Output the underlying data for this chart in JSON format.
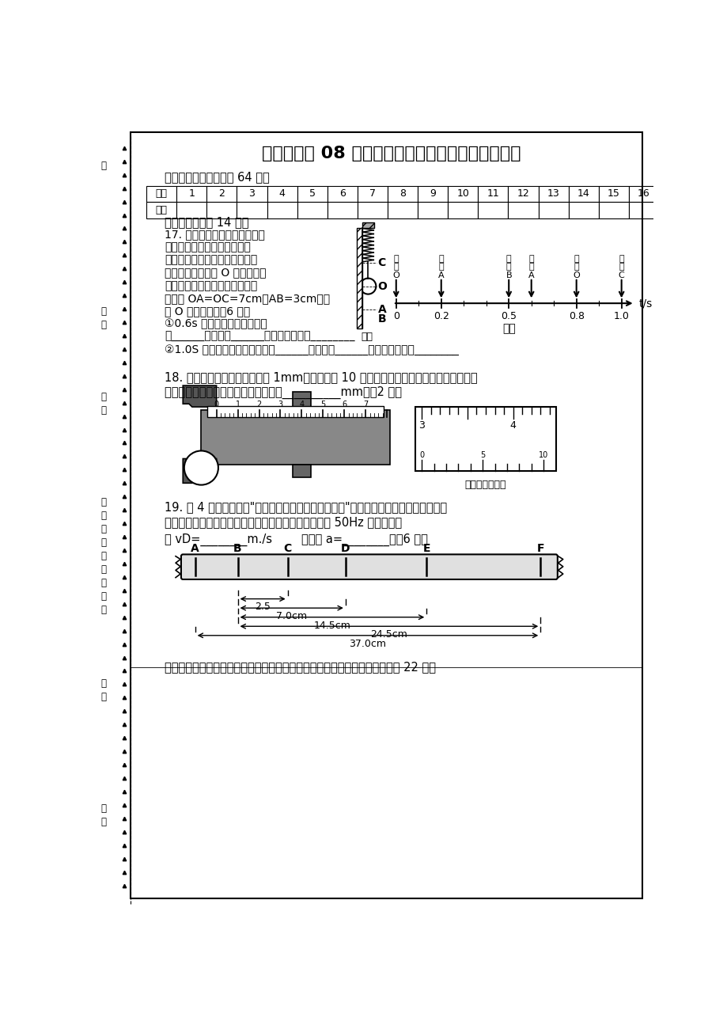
{
  "title": "通海一中高 08 级高一上学期期中考物理试卷答题卡",
  "section1_label": "一、选择题（两题共计 64 分）",
  "table_headers": [
    "题号",
    "1",
    "2",
    "3",
    "4",
    "5",
    "6",
    "7",
    "8",
    "9",
    "10",
    "11",
    "12",
    "13",
    "14",
    "15",
    "16"
  ],
  "table_row2": "答案",
  "section3_label": "三、填空题（计 14 分）",
  "q17_lines": [
    "17. 如图所示，一弹簧下端吊有",
    "一小球。用手拉一下小球，小",
    "球便上下来回运动（图甲）小球",
    "向下经过中间位置 O 开始计时，",
    "其在各时刻的位置如图乙所示。",
    "若测得 OA=OC=7cm，AB=3cm，则",
    "自 O 时刻开始，（6 分）",
    "①0.6s 内小球发生的位移大小",
    "是______，方向为______，经过的路程是________",
    "②1.0S 内小球发生的位移大小是______，方向为______，经过的路程是________"
  ],
  "fig_jia_label": "图甲",
  "fig_yi_label": "图乙",
  "fig_yi_labels": [
    [
      "经",
      "过",
      "O"
    ],
    [
      "经",
      "过",
      "A"
    ],
    [
      "经",
      "过",
      "B"
    ],
    [
      "经",
      "过",
      "A"
    ],
    [
      "经",
      "过",
      "O"
    ],
    [
      "经",
      "过",
      "C"
    ]
  ],
  "fig_yi_t_axis": "t/s",
  "q18_line1": "18. 一游标卡尺的主尺最小分度 1mm，游标上有 10 个小等分间隔，现用此卡尺来测量一工",
  "q18_line2": "件的直径，如图所示，该工作的直径为__________mm。（2 分）",
  "vernier_label": "游标部分放大图",
  "q19_text1": "19. 图 4 是某同学在做\"测定匀变速直线运动的加速度\"实验中的一条纸带，每相邻两个",
  "q19_text2": "计数点中间都有四个点未画出。打点计时器接在频率为 50Hz 的电源上。",
  "q19_sub": "则 vD=________m./s        加速度 a=________。（6 分）",
  "tape_labels": [
    "A",
    "B",
    "C",
    "D",
    "E",
    "F"
  ],
  "tape_meas_labels": [
    "2.5",
    "7.0cm",
    "14.5cm",
    "24.5cm",
    "37.0cm"
  ],
  "section4_label": "四、计算题（要求写出必要的文字说明和演算步骤，只写答案的不能得分，计 22 分）",
  "bg_color": "#ffffff"
}
